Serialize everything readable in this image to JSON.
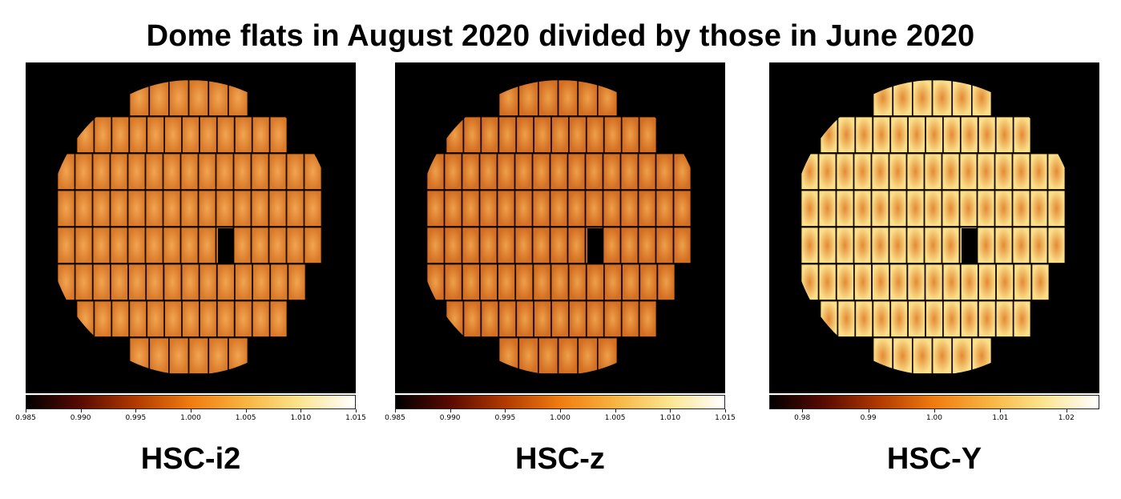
{
  "title": "Dome flats in August 2020 divided by those in June 2020",
  "panels": [
    {
      "label": "HSC-i2",
      "ticks": [
        "0.985",
        "0.990",
        "0.995",
        "1.000",
        "1.005",
        "1.010",
        "1.015"
      ],
      "range": [
        0.985,
        1.015
      ],
      "colormap": [
        "#000000",
        "#5a0a00",
        "#b23a00",
        "#f07c10",
        "#f8b440",
        "#fce590",
        "#ffffff"
      ],
      "field_color": "#f2a552",
      "field_color_low": "#d97a2a"
    },
    {
      "label": "HSC-z",
      "ticks": [
        "0.985",
        "0.990",
        "0.995",
        "1.000",
        "1.005",
        "1.010",
        "1.015"
      ],
      "range": [
        0.985,
        1.015
      ],
      "colormap": [
        "#000000",
        "#5a0a00",
        "#b23a00",
        "#f07c10",
        "#f8b440",
        "#fce590",
        "#ffffff"
      ],
      "field_color": "#eea04a",
      "field_color_low": "#d36e22"
    },
    {
      "label": "HSC-Y",
      "ticks": [
        "0.98",
        "0.99",
        "1.00",
        "1.01",
        "1.02"
      ],
      "range": [
        0.975,
        1.025
      ],
      "colormap": [
        "#000000",
        "#5a0a00",
        "#b23a00",
        "#f07c10",
        "#f8b440",
        "#fce590",
        "#ffffff"
      ],
      "field_color": "#e48a34",
      "field_color_low": "#fbe08c"
    }
  ]
}
